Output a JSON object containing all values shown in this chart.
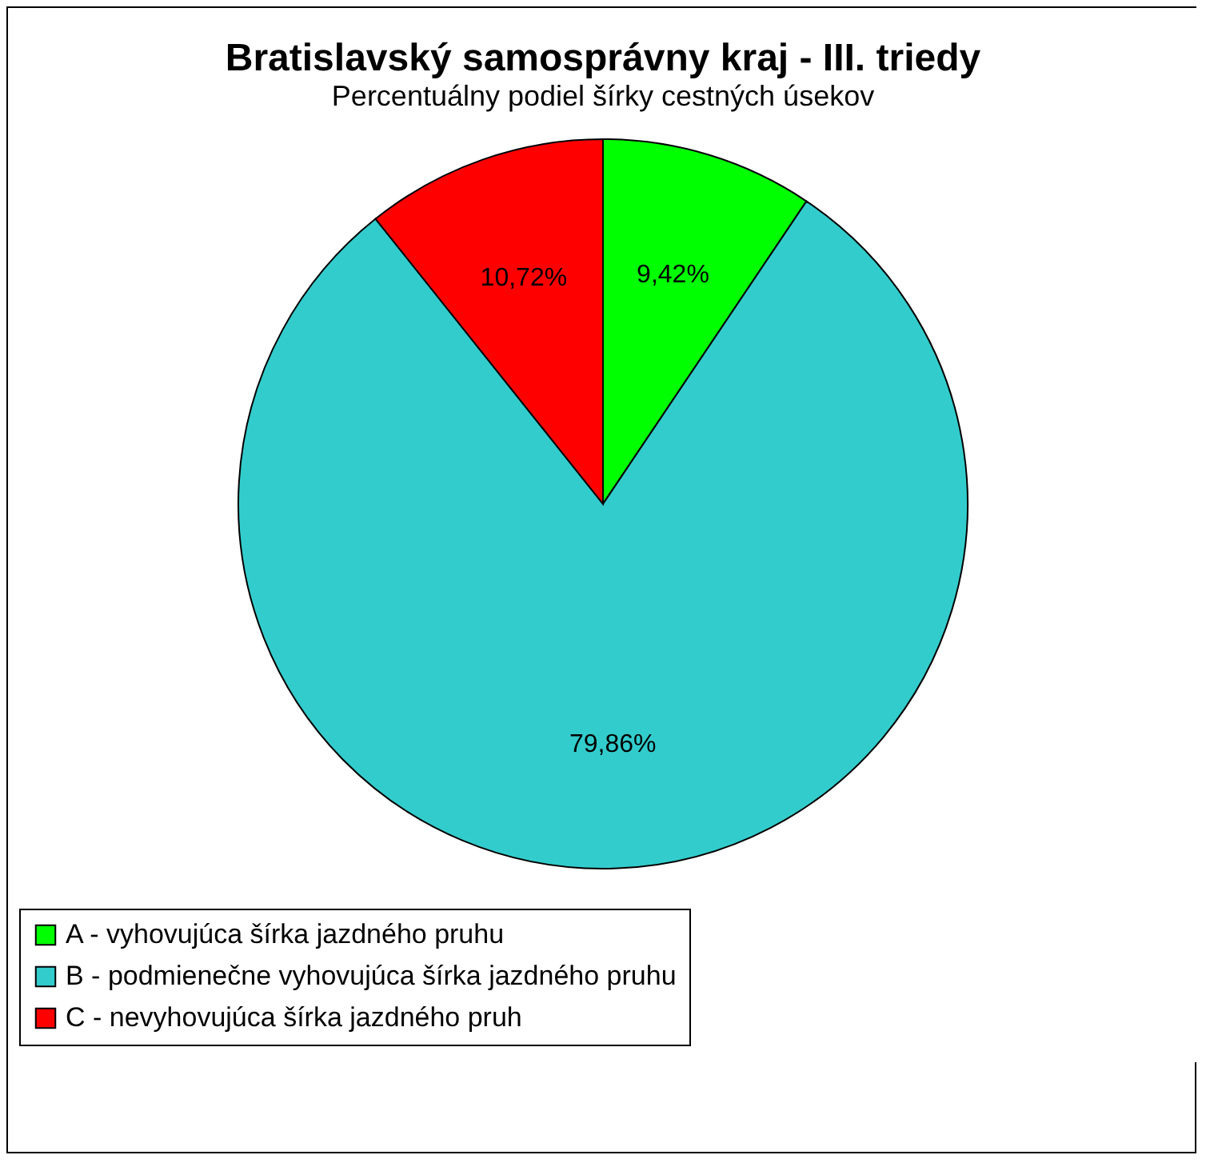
{
  "chart_data": {
    "type": "pie",
    "title": "Bratislavský samosprávny kraj - III. triedy",
    "subtitle": "Percentuálny podiel šírky cestných úsekov",
    "categories": [
      "A - vyhovujúca šírka jazdného pruhu",
      "B - podmienečne vyhovujúca šírka jazdného pruhu",
      "C - nevyhovujúca šírka jazdného pruh"
    ],
    "values": [
      9.42,
      79.86,
      10.72
    ],
    "colors": [
      "#00ff00",
      "#33cccc",
      "#ff0000"
    ],
    "value_labels": [
      "9,42%",
      "79,86%",
      "10,72%"
    ],
    "legend": "bottom"
  }
}
